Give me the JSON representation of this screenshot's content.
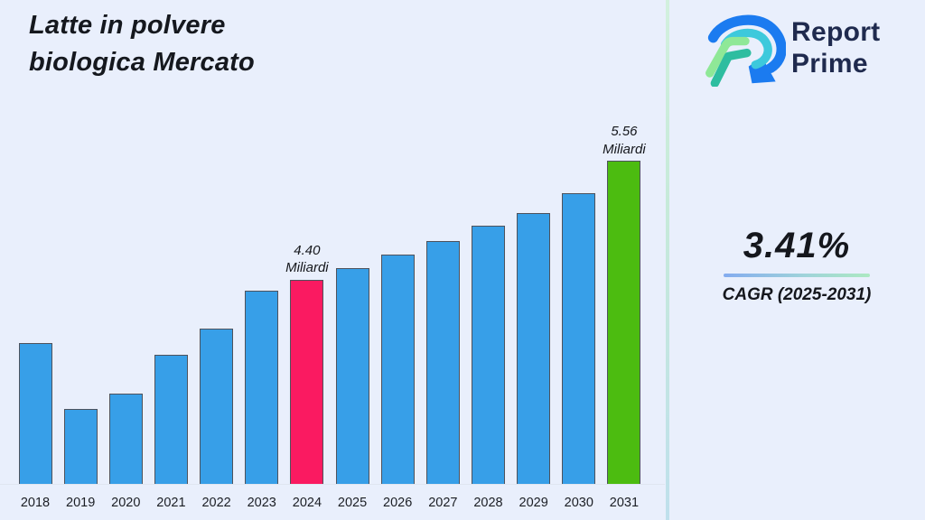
{
  "title": {
    "line1": "Latte in polvere",
    "line2": "biologica Mercato"
  },
  "brand": {
    "line1": "Report",
    "line2": "Prime",
    "logo_icon": "report-prime-logo"
  },
  "cagr": {
    "value": "3.41%",
    "label": "CAGR (2025-2031)"
  },
  "colors": {
    "background": "#e9effc",
    "bar_default": "#379fe8",
    "bar_highlight_2024": "#fa1a61",
    "bar_highlight_2031": "#4cbc10",
    "bar_border": "#4e525c",
    "divider_gradient": [
      "#d2f0de",
      "#bfe0ec"
    ],
    "cagr_underline_gradient": [
      "#83abef",
      "#ace9c2"
    ],
    "brand_navy": "#1f2a4e",
    "text": "#15181e",
    "logo_blue": "#1b7bf0",
    "logo_cyan": "#3dc9dc",
    "logo_light_green": "#8fe897",
    "logo_teal": "#2ebda0"
  },
  "chart_data": {
    "type": "bar",
    "title": "Latte in polvere biologica Mercato",
    "categories": [
      "2018",
      "2019",
      "2020",
      "2021",
      "2022",
      "2023",
      "2024",
      "2025",
      "2026",
      "2027",
      "2028",
      "2029",
      "2030",
      "2031"
    ],
    "values": [
      3.78,
      3.13,
      3.28,
      3.66,
      3.92,
      4.29,
      4.4,
      4.51,
      4.64,
      4.78,
      4.93,
      5.05,
      5.24,
      5.56
    ],
    "unit": "Miliardi",
    "xlabel": "",
    "ylabel": "",
    "ylim": [
      2.4,
      5.95
    ],
    "grid": false,
    "legend": false,
    "bar_colors": {
      "default": "#379fe8",
      "2024": "#fa1a61",
      "2031": "#4cbc10"
    },
    "annotations": [
      {
        "category": "2024",
        "lines": [
          "4.40",
          "Miliardi"
        ]
      },
      {
        "category": "2031",
        "lines": [
          "5.56",
          "Miliardi"
        ]
      }
    ]
  }
}
